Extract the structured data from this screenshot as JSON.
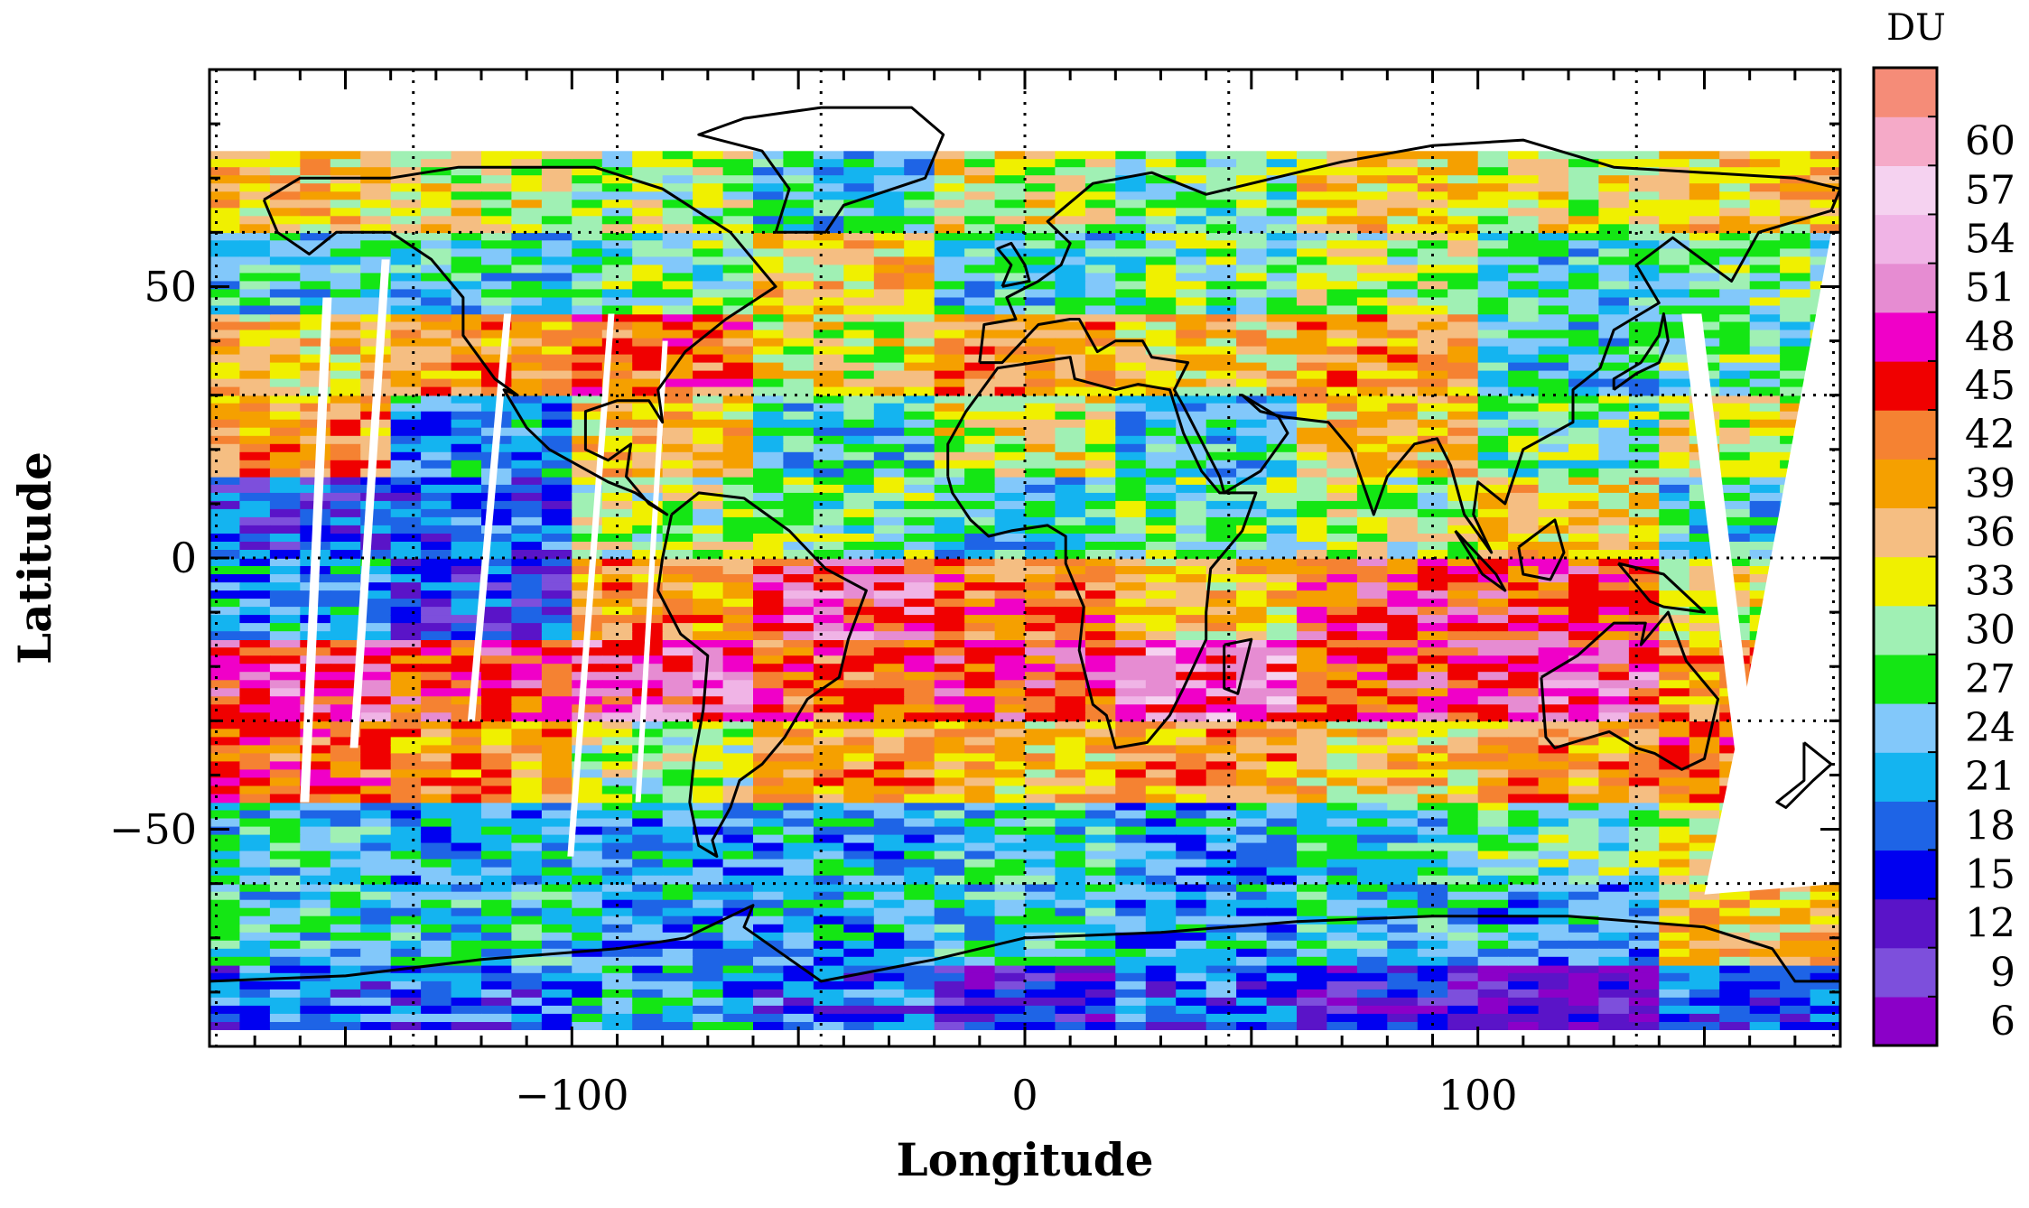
{
  "chart_data": {
    "type": "heatmap",
    "title": "",
    "xlabel": "Longitude",
    "ylabel": "Latitude",
    "xlim": [
      -180,
      180
    ],
    "ylim": [
      -90,
      90
    ],
    "x_ticks": [
      {
        "value": -100,
        "label": "−100"
      },
      {
        "value": 0,
        "label": "0"
      },
      {
        "value": 100,
        "label": "100"
      }
    ],
    "y_ticks": [
      {
        "value": 50,
        "label": "50"
      },
      {
        "value": 0,
        "label": "0"
      },
      {
        "value": -50,
        "label": "−50"
      }
    ],
    "grid": {
      "style": "dotted",
      "lon_step": 45,
      "lat_step": 30
    },
    "colorbar": {
      "title": "DU",
      "placement": "right",
      "levels": [
        {
          "value": 6,
          "label": "6",
          "color": "#8b00c8"
        },
        {
          "value": 9,
          "label": "9",
          "color": "#7d4fdc"
        },
        {
          "value": 12,
          "label": "12",
          "color": "#5a14c8"
        },
        {
          "value": 15,
          "label": "15",
          "color": "#0000f0"
        },
        {
          "value": 18,
          "label": "18",
          "color": "#1e64e6"
        },
        {
          "value": 21,
          "label": "21",
          "color": "#14b4f0"
        },
        {
          "value": 24,
          "label": "24",
          "color": "#82c8fa"
        },
        {
          "value": 27,
          "label": "27",
          "color": "#14e614"
        },
        {
          "value": 30,
          "label": "30",
          "color": "#a0f0b4"
        },
        {
          "value": 33,
          "label": "33",
          "color": "#f0f000"
        },
        {
          "value": 36,
          "label": "36",
          "color": "#f5be82"
        },
        {
          "value": 39,
          "label": "39",
          "color": "#f5a000"
        },
        {
          "value": 42,
          "label": "42",
          "color": "#f58232"
        },
        {
          "value": 45,
          "label": "45",
          "color": "#f00000"
        },
        {
          "value": 48,
          "label": "48",
          "color": "#f000c8"
        },
        {
          "value": 51,
          "label": "51",
          "color": "#e68cd2"
        },
        {
          "value": 54,
          "label": "54",
          "color": "#f0b4e6"
        },
        {
          "value": 57,
          "label": "57",
          "color": "#f5d2f0"
        },
        {
          "value": 60,
          "label": "60",
          "color": "#f5aac8"
        },
        {
          "value": 63,
          "label": "",
          "color": "#f58c78"
        }
      ]
    },
    "lat_bands": [
      {
        "lat": [
          -90,
          -75
        ],
        "values": [
          18,
          18,
          21,
          18,
          12,
          18,
          12,
          9,
          18
        ]
      },
      {
        "lat": [
          -75,
          -60
        ],
        "values": [
          24,
          24,
          21,
          21,
          24,
          21,
          24,
          21,
          36
        ]
      },
      {
        "lat": [
          -60,
          -45
        ],
        "values": [
          24,
          21,
          21,
          21,
          24,
          21,
          24,
          27,
          33
        ]
      },
      {
        "lat": [
          -45,
          -30
        ],
        "values": [
          42,
          39,
          30,
          39,
          36,
          39,
          36,
          39,
          42
        ]
      },
      {
        "lat": [
          -30,
          -15
        ],
        "values": [
          48,
          45,
          48,
          42,
          45,
          51,
          45,
          48,
          39
        ]
      },
      {
        "lat": [
          -15,
          0
        ],
        "values": [
          21,
          15,
          39,
          48,
          42,
          36,
          45,
          45,
          33
        ]
      },
      {
        "lat": [
          0,
          15
        ],
        "values": [
          15,
          18,
          30,
          27,
          24,
          27,
          30,
          36,
          24
        ]
      },
      {
        "lat": [
          15,
          30
        ],
        "values": [
          39,
          21,
          36,
          24,
          33,
          24,
          36,
          27,
          33
        ]
      },
      {
        "lat": [
          30,
          45
        ],
        "values": [
          36,
          39,
          42,
          33,
          39,
          36,
          39,
          24,
          27
        ]
      },
      {
        "lat": [
          45,
          60
        ],
        "values": [
          24,
          24,
          27,
          36,
          24,
          27,
          30,
          24,
          27
        ]
      },
      {
        "lat": [
          60,
          75
        ],
        "values": [
          36,
          33,
          30,
          24,
          33,
          27,
          36,
          33,
          36
        ]
      }
    ]
  }
}
